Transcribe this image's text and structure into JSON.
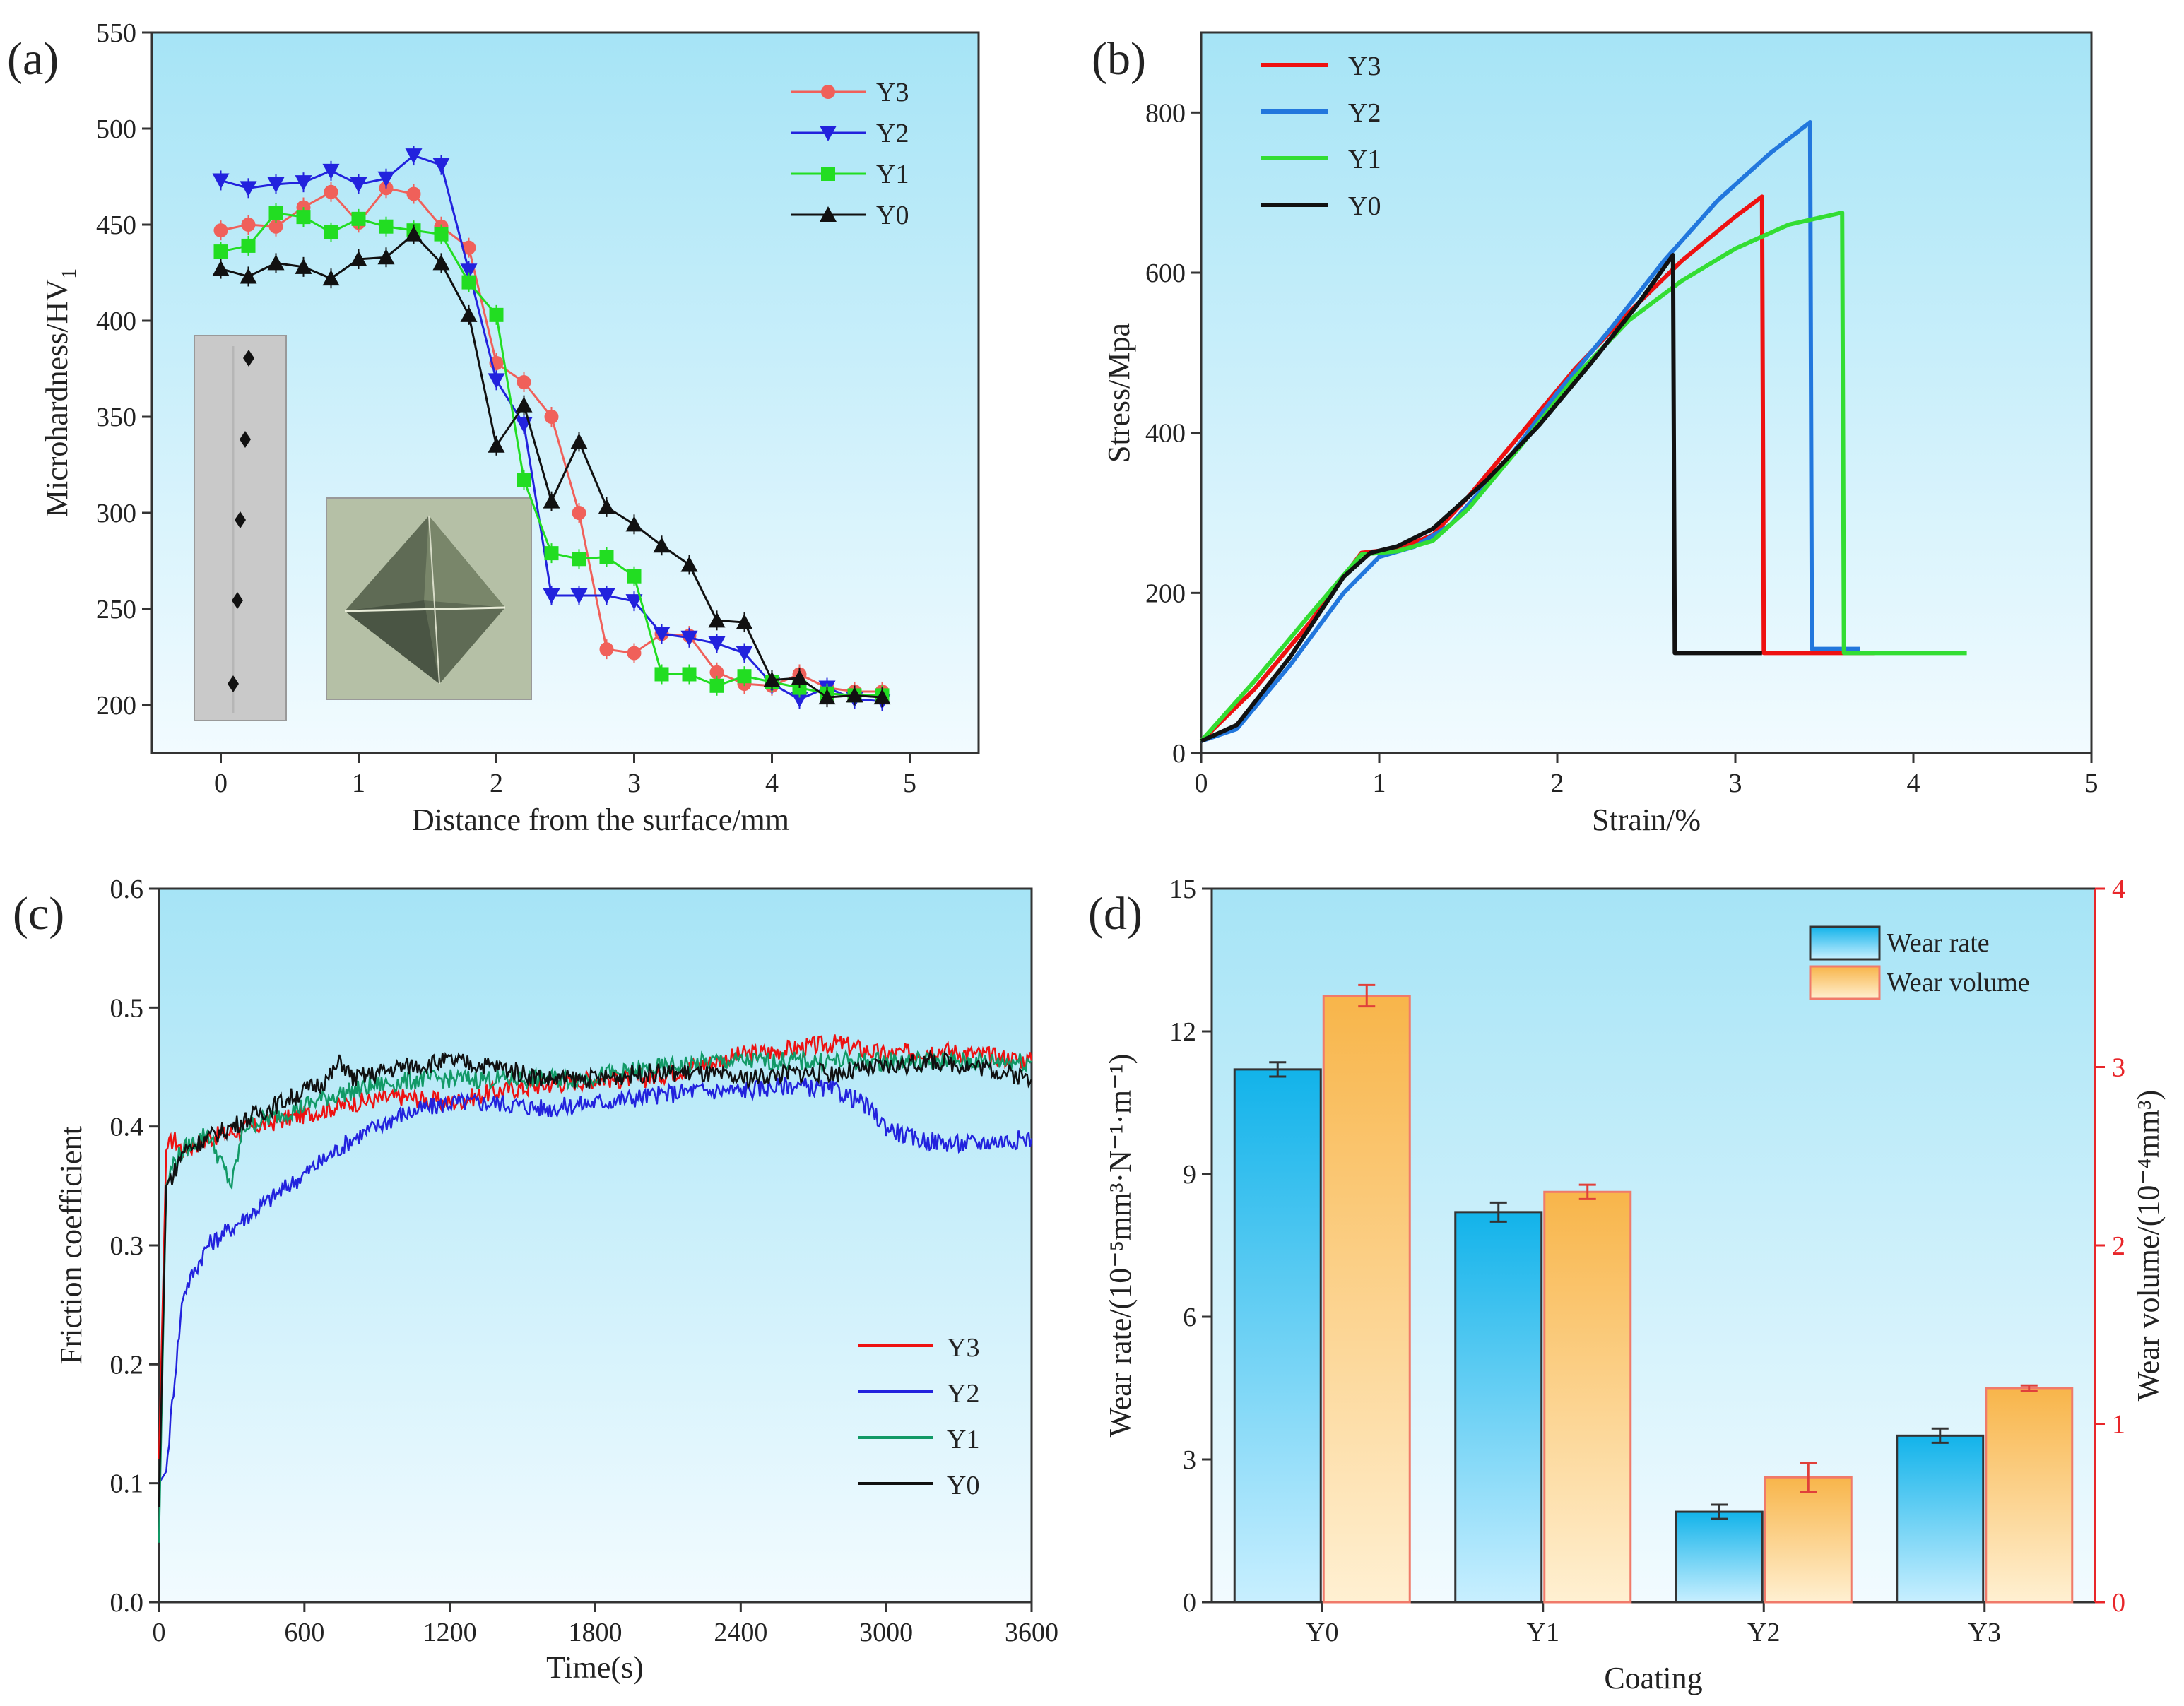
{
  "chart_data": [
    {
      "panel": "(a)",
      "type": "line",
      "xlabel": "Distance from the surface/mm",
      "ylabel": "Microhardness/HV",
      "ylabel_sub": "1",
      "xlim": [
        -0.5,
        5.5
      ],
      "ylim": [
        175,
        550
      ],
      "xticks": [
        0,
        1,
        2,
        3,
        4,
        5
      ],
      "yticks": [
        200,
        250,
        300,
        350,
        400,
        450,
        500,
        550
      ],
      "legend_position": "top-right",
      "x": [
        0,
        0.2,
        0.4,
        0.6,
        0.8,
        1.0,
        1.2,
        1.4,
        1.6,
        1.8,
        2.0,
        2.2,
        2.4,
        2.6,
        2.8,
        3.0,
        3.2,
        3.4,
        3.6,
        3.8,
        4.0,
        4.2,
        4.4,
        4.6,
        4.8
      ],
      "series": [
        {
          "name": "Y3",
          "color": "#f0605a",
          "marker": "circle",
          "values": [
            447,
            450,
            449,
            459,
            467,
            451,
            469,
            466,
            449,
            438,
            378,
            368,
            350,
            300,
            229,
            227,
            237,
            236,
            217,
            211,
            210,
            216,
            209,
            207,
            207
          ]
        },
        {
          "name": "Y2",
          "color": "#2222dd",
          "marker": "triangle-down",
          "values": [
            473,
            469,
            471,
            472,
            478,
            471,
            474,
            486,
            481,
            426,
            369,
            346,
            257,
            257,
            257,
            254,
            237,
            235,
            232,
            227,
            211,
            203,
            209,
            203,
            202
          ]
        },
        {
          "name": "Y1",
          "color": "#22dd22",
          "marker": "square",
          "values": [
            436,
            439,
            456,
            454,
            446,
            453,
            449,
            447,
            445,
            420,
            403,
            317,
            279,
            276,
            277,
            267,
            216,
            216,
            210,
            215,
            212,
            209,
            206,
            205,
            205
          ]
        },
        {
          "name": "Y0",
          "color": "#111111",
          "marker": "triangle-up",
          "values": [
            427,
            423,
            430,
            428,
            422,
            432,
            433,
            445,
            430,
            403,
            335,
            356,
            306,
            337,
            303,
            294,
            283,
            273,
            244,
            243,
            213,
            214,
            204,
            205,
            204
          ]
        }
      ]
    },
    {
      "panel": "(b)",
      "type": "line",
      "xlabel": "Strain/%",
      "ylabel": "Stress/Mpa",
      "xlim": [
        0,
        5
      ],
      "ylim": [
        0,
        900
      ],
      "xticks": [
        0,
        1,
        2,
        3,
        4,
        5
      ],
      "yticks": [
        0,
        200,
        400,
        600,
        800
      ],
      "legend_position": "top-left",
      "series": [
        {
          "name": "Y3",
          "color": "#ee1111",
          "points": [
            [
              0,
              15
            ],
            [
              0.3,
              80
            ],
            [
              0.6,
              160
            ],
            [
              0.9,
              250
            ],
            [
              1.1,
              255
            ],
            [
              1.3,
              272
            ],
            [
              1.5,
              320
            ],
            [
              1.8,
              400
            ],
            [
              2.1,
              480
            ],
            [
              2.4,
              550
            ],
            [
              2.7,
              615
            ],
            [
              3.0,
              670
            ],
            [
              3.15,
              695
            ],
            [
              3.16,
              125
            ],
            [
              3.78,
              125
            ]
          ]
        },
        {
          "name": "Y2",
          "color": "#2277dd",
          "points": [
            [
              0,
              15
            ],
            [
              0.2,
              30
            ],
            [
              0.5,
              110
            ],
            [
              0.8,
              200
            ],
            [
              1.0,
              245
            ],
            [
              1.2,
              258
            ],
            [
              1.4,
              285
            ],
            [
              1.7,
              360
            ],
            [
              2.0,
              450
            ],
            [
              2.3,
              530
            ],
            [
              2.6,
              615
            ],
            [
              2.9,
              690
            ],
            [
              3.2,
              750
            ],
            [
              3.42,
              788
            ],
            [
              3.43,
              130
            ],
            [
              3.7,
              130
            ]
          ]
        },
        {
          "name": "Y1",
          "color": "#33dd33",
          "points": [
            [
              0,
              15
            ],
            [
              0.3,
              90
            ],
            [
              0.6,
              170
            ],
            [
              0.9,
              248
            ],
            [
              1.1,
              252
            ],
            [
              1.3,
              265
            ],
            [
              1.5,
              305
            ],
            [
              1.8,
              385
            ],
            [
              2.1,
              470
            ],
            [
              2.4,
              540
            ],
            [
              2.7,
              590
            ],
            [
              3.0,
              630
            ],
            [
              3.3,
              660
            ],
            [
              3.6,
              675
            ],
            [
              3.61,
              125
            ],
            [
              4.3,
              125
            ]
          ]
        },
        {
          "name": "Y0",
          "color": "#111111",
          "points": [
            [
              0,
              15
            ],
            [
              0.2,
              35
            ],
            [
              0.5,
              120
            ],
            [
              0.8,
              220
            ],
            [
              0.95,
              250
            ],
            [
              1.1,
              258
            ],
            [
              1.3,
              280
            ],
            [
              1.6,
              340
            ],
            [
              1.9,
              410
            ],
            [
              2.2,
              490
            ],
            [
              2.45,
              560
            ],
            [
              2.65,
              622
            ],
            [
              2.66,
              125
            ],
            [
              3.15,
              125
            ]
          ]
        }
      ]
    },
    {
      "panel": "(c)",
      "type": "line",
      "xlabel": "Time(s)",
      "ylabel": "Friction coefficient",
      "xlim": [
        0,
        3600
      ],
      "ylim": [
        0,
        0.6
      ],
      "xticks": [
        0,
        600,
        1200,
        1800,
        2400,
        3000,
        3600
      ],
      "yticks": [
        0.0,
        0.1,
        0.2,
        0.3,
        0.4,
        0.5,
        0.6
      ],
      "legend_position": "bottom-right",
      "series": [
        {
          "name": "Y3",
          "color": "#ee1111",
          "points": [
            [
              0,
              0.12
            ],
            [
              30,
              0.38
            ],
            [
              60,
              0.39
            ],
            [
              100,
              0.38
            ],
            [
              200,
              0.39
            ],
            [
              400,
              0.4
            ],
            [
              600,
              0.41
            ],
            [
              800,
              0.42
            ],
            [
              1000,
              0.425
            ],
            [
              1200,
              0.42
            ],
            [
              1400,
              0.43
            ],
            [
              1600,
              0.435
            ],
            [
              1800,
              0.44
            ],
            [
              2000,
              0.44
            ],
            [
              2200,
              0.45
            ],
            [
              2400,
              0.46
            ],
            [
              2600,
              0.465
            ],
            [
              2800,
              0.47
            ],
            [
              3000,
              0.46
            ],
            [
              3200,
              0.465
            ],
            [
              3400,
              0.46
            ],
            [
              3600,
              0.455
            ]
          ]
        },
        {
          "name": "Y2",
          "color": "#2222dd",
          "points": [
            [
              0,
              0.1
            ],
            [
              30,
              0.11
            ],
            [
              60,
              0.18
            ],
            [
              100,
              0.26
            ],
            [
              200,
              0.3
            ],
            [
              400,
              0.33
            ],
            [
              600,
              0.36
            ],
            [
              800,
              0.39
            ],
            [
              1000,
              0.41
            ],
            [
              1200,
              0.42
            ],
            [
              1400,
              0.42
            ],
            [
              1600,
              0.415
            ],
            [
              1800,
              0.42
            ],
            [
              2000,
              0.425
            ],
            [
              2200,
              0.43
            ],
            [
              2400,
              0.43
            ],
            [
              2600,
              0.435
            ],
            [
              2800,
              0.43
            ],
            [
              2900,
              0.42
            ],
            [
              3000,
              0.4
            ],
            [
              3100,
              0.39
            ],
            [
              3300,
              0.385
            ],
            [
              3600,
              0.39
            ]
          ]
        },
        {
          "name": "Y1",
          "color": "#119966",
          "points": [
            [
              0,
              0.05
            ],
            [
              30,
              0.35
            ],
            [
              60,
              0.37
            ],
            [
              100,
              0.38
            ],
            [
              200,
              0.395
            ],
            [
              300,
              0.35
            ],
            [
              350,
              0.4
            ],
            [
              500,
              0.41
            ],
            [
              700,
              0.425
            ],
            [
              900,
              0.435
            ],
            [
              1100,
              0.44
            ],
            [
              1300,
              0.44
            ],
            [
              1500,
              0.44
            ],
            [
              1700,
              0.44
            ],
            [
              1900,
              0.445
            ],
            [
              2100,
              0.45
            ],
            [
              2300,
              0.455
            ],
            [
              2500,
              0.455
            ],
            [
              2700,
              0.455
            ],
            [
              2900,
              0.455
            ],
            [
              3100,
              0.455
            ],
            [
              3300,
              0.455
            ],
            [
              3600,
              0.455
            ]
          ]
        },
        {
          "name": "Y0",
          "color": "#111111",
          "points": [
            [
              0,
              0.08
            ],
            [
              30,
              0.35
            ],
            [
              60,
              0.36
            ],
            [
              100,
              0.38
            ],
            [
              200,
              0.39
            ],
            [
              400,
              0.41
            ],
            [
              600,
              0.43
            ],
            [
              700,
              0.44
            ],
            [
              750,
              0.455
            ],
            [
              800,
              0.44
            ],
            [
              1000,
              0.45
            ],
            [
              1200,
              0.455
            ],
            [
              1400,
              0.45
            ],
            [
              1600,
              0.44
            ],
            [
              1800,
              0.44
            ],
            [
              2000,
              0.445
            ],
            [
              2200,
              0.445
            ],
            [
              2400,
              0.44
            ],
            [
              2600,
              0.445
            ],
            [
              2800,
              0.445
            ],
            [
              3000,
              0.45
            ],
            [
              3200,
              0.455
            ],
            [
              3400,
              0.45
            ],
            [
              3600,
              0.44
            ]
          ]
        }
      ]
    },
    {
      "panel": "(d)",
      "type": "bar",
      "xlabel": "Coating",
      "ylabel_left": "Wear rate/(10⁻⁵mm³·N⁻¹·m⁻¹)",
      "ylabel_right": "Wear volume/(10⁻⁴mm³)",
      "categories": [
        "Y0",
        "Y1",
        "Y2",
        "Y3"
      ],
      "ylim_left": [
        0,
        15
      ],
      "ylim_right": [
        0,
        4
      ],
      "yticks_left": [
        0,
        3,
        6,
        9,
        12,
        15
      ],
      "yticks_right": [
        0,
        1,
        2,
        3,
        4
      ],
      "legend_position": "top-right",
      "series": [
        {
          "name": "Wear rate",
          "axis": "left",
          "color": "#12b3ea",
          "values": [
            11.2,
            8.2,
            1.9,
            3.5
          ],
          "errors": [
            0.15,
            0.2,
            0.15,
            0.15
          ]
        },
        {
          "name": "Wear volume",
          "axis": "right",
          "color": "#f8b54a",
          "values": [
            3.4,
            2.3,
            0.7,
            1.2
          ],
          "errors": [
            0.06,
            0.04,
            0.08,
            0.015
          ]
        }
      ]
    }
  ]
}
